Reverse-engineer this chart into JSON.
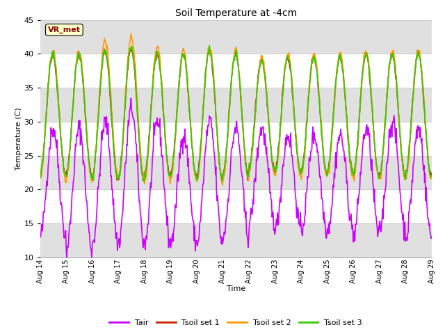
{
  "title": "Soil Temperature at -4cm",
  "xlabel": "Time",
  "ylabel": "Temperature (C)",
  "ylim": [
    10,
    45
  ],
  "yticks": [
    10,
    15,
    20,
    25,
    30,
    35,
    40,
    45
  ],
  "fig_bg_color": "#ffffff",
  "plot_bg_color": "#ffffff",
  "band_color": "#e0e0e0",
  "colors": {
    "Tair": "#cc00ff",
    "Tsoil_set1": "#cc2200",
    "Tsoil_set2": "#ff9900",
    "Tsoil_set3": "#33cc00"
  },
  "legend_labels": [
    "Tair",
    "Tsoil set 1",
    "Tsoil set 2",
    "Tsoil set 3"
  ],
  "annotation_text": "VR_met",
  "num_days": 15,
  "start_day": 14,
  "end_day": 29,
  "points_per_day": 48,
  "seed": 42,
  "grid_color": "#cccccc",
  "linewidth": 1.2
}
